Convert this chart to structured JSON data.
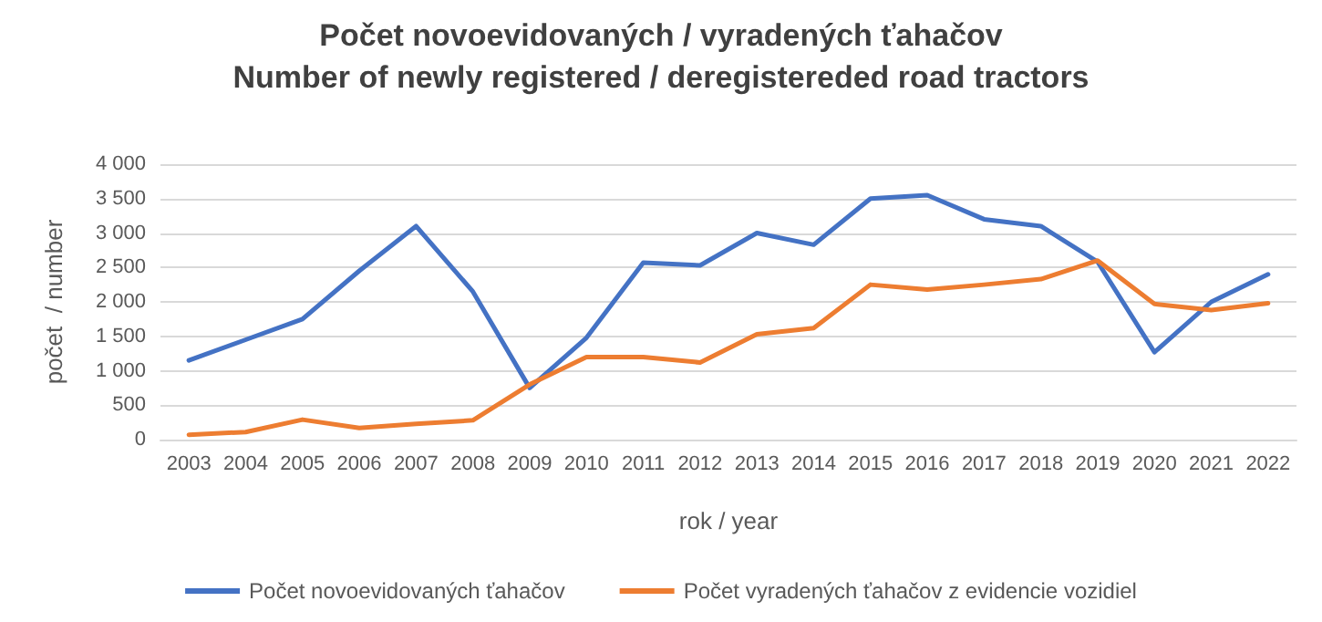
{
  "chart_data": {
    "type": "line",
    "title": "Počet novoevidovaných / vyradených ťahačov",
    "subtitle": "Number of newly registered / deregistereded road tractors",
    "xlabel": "rok / year",
    "ylabel": "počet  / number",
    "categories": [
      "2003",
      "2004",
      "2005",
      "2006",
      "2007",
      "2008",
      "2009",
      "2010",
      "2011",
      "2012",
      "2013",
      "2014",
      "2015",
      "2016",
      "2017",
      "2018",
      "2019",
      "2020",
      "2021",
      "2022"
    ],
    "series": [
      {
        "name": "Počet novoevidovaných ťahačov",
        "color": "#4472c4",
        "values": [
          1150,
          1450,
          1750,
          2450,
          3100,
          2150,
          750,
          1480,
          2570,
          2530,
          3000,
          2830,
          3500,
          3550,
          3200,
          3100,
          2580,
          1270,
          2000,
          2400
        ]
      },
      {
        "name": "Počet vyradených ťahačov z evidencie vozidiel",
        "color": "#ed7d31",
        "values": [
          70,
          110,
          290,
          170,
          230,
          280,
          800,
          1200,
          1200,
          1120,
          1530,
          1620,
          2250,
          2180,
          2250,
          2330,
          2600,
          1970,
          1880,
          1980
        ]
      }
    ],
    "ylim": [
      0,
      4000
    ],
    "yticks": [
      0,
      {
        "value": 500,
        "label": "500"
      },
      {
        "value": 1000,
        "label": "1 000"
      },
      {
        "value": 1500,
        "label": "1 500"
      },
      {
        "value": 2000,
        "label": "2 000"
      },
      {
        "value": 2500,
        "label": "2 500"
      },
      {
        "value": 3000,
        "label": "3 000"
      },
      {
        "value": 3500,
        "label": "3 500"
      },
      {
        "value": 4000,
        "label": "4 000"
      }
    ],
    "grid": "y",
    "legend": "bottom",
    "marker": "none",
    "line_style": "solid"
  }
}
